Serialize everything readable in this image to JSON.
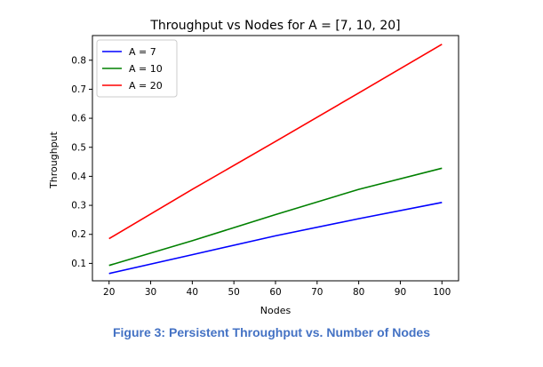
{
  "chart_data": {
    "type": "line",
    "title": "Throughput vs Nodes for A = [7, 10, 20]",
    "xlabel": "Nodes",
    "ylabel": "Throughput",
    "xlim": [
      16,
      104
    ],
    "ylim": [
      0.04,
      0.885
    ],
    "xticks": [
      20,
      30,
      40,
      50,
      60,
      70,
      80,
      90,
      100
    ],
    "yticks": [
      0.1,
      0.2,
      0.3,
      0.4,
      0.5,
      0.6,
      0.7,
      0.8
    ],
    "grid": false,
    "legend_position": "top-left",
    "series": [
      {
        "name": "A = 7",
        "color": "#0000ff",
        "x": [
          20,
          40,
          60,
          80,
          100
        ],
        "y": [
          0.065,
          0.13,
          0.195,
          0.254,
          0.31
        ]
      },
      {
        "name": "A = 10",
        "color": "#008000",
        "x": [
          20,
          40,
          60,
          80,
          100
        ],
        "y": [
          0.093,
          0.178,
          0.268,
          0.355,
          0.428
        ]
      },
      {
        "name": "A = 20",
        "color": "#ff0000",
        "x": [
          20,
          40,
          60,
          80,
          100
        ],
        "y": [
          0.185,
          0.355,
          0.52,
          0.687,
          0.855
        ]
      }
    ]
  },
  "caption": "Figure 3: Persistent Throughput vs. Number of Nodes"
}
